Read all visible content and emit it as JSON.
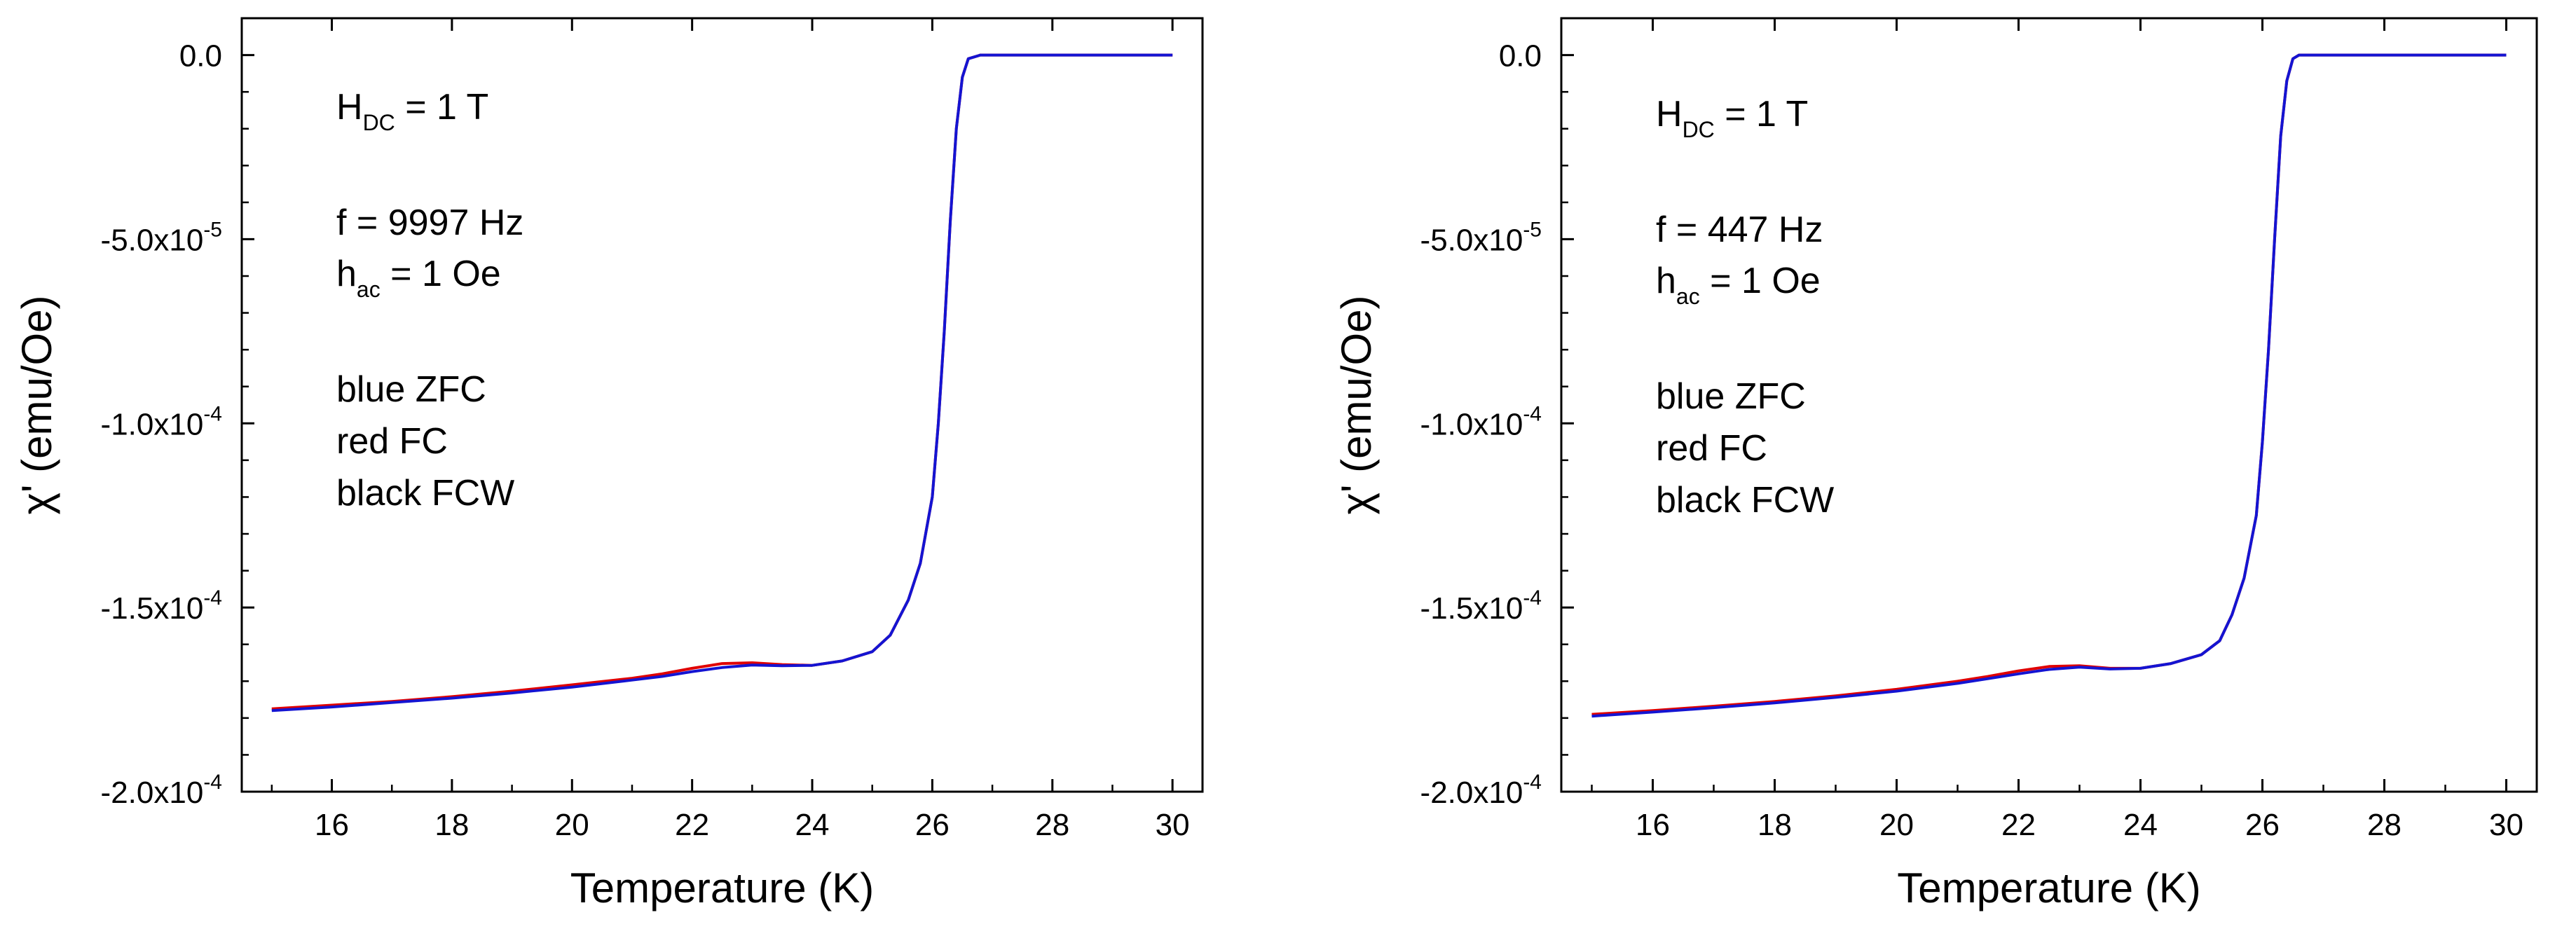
{
  "chart_data": [
    {
      "type": "line",
      "xlabel": "Temperature (K)",
      "ylabel": "χ' (emu/Oe)",
      "xlim": [
        14.5,
        30.5
      ],
      "ylim": [
        -0.0002,
        1e-05
      ],
      "xticks": [
        16,
        18,
        20,
        22,
        24,
        26,
        28,
        30
      ],
      "xtick_labels": [
        "16",
        "18",
        "20",
        "22",
        "24",
        "26",
        "28",
        "30"
      ],
      "yticks": [
        -0.0002,
        -0.00015,
        -0.0001,
        -5e-05,
        0
      ],
      "ytick_labels": [
        {
          "mant": "-2.0x10",
          "exp": "-4"
        },
        {
          "mant": "-1.5x10",
          "exp": "-4"
        },
        {
          "mant": "-1.0x10",
          "exp": "-4"
        },
        {
          "mant": "-5.0x10",
          "exp": "-5"
        },
        {
          "mant": "0.0",
          "exp": ""
        }
      ],
      "annotations": {
        "hdc_main": "H",
        "hdc_sub": "DC",
        "hdc_rest": " = 1 T",
        "freq": "f = 9997 Hz",
        "hac_main": "h",
        "hac_sub": "ac",
        "hac_rest": " = 1 Oe",
        "legend_blue": "blue ZFC",
        "legend_red": "red FC",
        "legend_black": "black FCW"
      },
      "series": [
        {
          "name": "FC",
          "color": "#e00000",
          "x": [
            15.0,
            16,
            17,
            18,
            19,
            20,
            21,
            21.5,
            22,
            22.5,
            23,
            23.5,
            24,
            24.5,
            25,
            25.3,
            25.6,
            25.8,
            26.0,
            26.1,
            26.2,
            26.3,
            26.4,
            26.5,
            26.6,
            26.8,
            27,
            28,
            29,
            30
          ],
          "y": [
            -0.0001775,
            -0.0001765,
            -0.0001755,
            -0.0001742,
            -0.0001727,
            -0.000171,
            -0.0001692,
            -0.000168,
            -0.0001665,
            -0.0001652,
            -0.000165,
            -0.0001655,
            -0.0001657,
            -0.0001645,
            -0.000162,
            -0.0001575,
            -0.000148,
            -0.000138,
            -0.00012,
            -0.0001,
            -7.5e-05,
            -4.5e-05,
            -2e-05,
            -6e-06,
            -1e-06,
            0.0,
            0.0,
            0.0,
            0.0,
            0.0
          ]
        },
        {
          "name": "ZFC",
          "color": "#1414d2",
          "x": [
            15.0,
            16,
            17,
            18,
            19,
            20,
            21,
            21.5,
            22,
            22.5,
            23,
            23.5,
            24,
            24.5,
            25,
            25.3,
            25.6,
            25.8,
            26.0,
            26.1,
            26.2,
            26.3,
            26.4,
            26.5,
            26.6,
            26.8,
            27,
            28,
            29,
            30
          ],
          "y": [
            -0.000178,
            -0.000177,
            -0.0001758,
            -0.0001746,
            -0.0001732,
            -0.0001716,
            -0.0001697,
            -0.0001687,
            -0.0001674,
            -0.0001663,
            -0.0001656,
            -0.0001658,
            -0.0001657,
            -0.0001645,
            -0.000162,
            -0.0001575,
            -0.000148,
            -0.000138,
            -0.00012,
            -0.0001,
            -7.5e-05,
            -4.5e-05,
            -2e-05,
            -6e-06,
            -1e-06,
            0.0,
            0.0,
            0.0,
            0.0,
            0.0
          ]
        }
      ]
    },
    {
      "type": "line",
      "xlabel": "Temperature (K)",
      "ylabel": "χ' (emu/Oe)",
      "xlim": [
        14.5,
        30.5
      ],
      "ylim": [
        -0.0002,
        1e-05
      ],
      "xticks": [
        16,
        18,
        20,
        22,
        24,
        26,
        28,
        30
      ],
      "xtick_labels": [
        "16",
        "18",
        "20",
        "22",
        "24",
        "26",
        "28",
        "30"
      ],
      "yticks": [
        -0.0002,
        -0.00015,
        -0.0001,
        -5e-05,
        0
      ],
      "ytick_labels": [
        {
          "mant": "-2.0x10",
          "exp": "-4"
        },
        {
          "mant": "-1.5x10",
          "exp": "-4"
        },
        {
          "mant": "-1.0x10",
          "exp": "-4"
        },
        {
          "mant": "-5.0x10",
          "exp": "-5"
        },
        {
          "mant": "0.0",
          "exp": ""
        }
      ],
      "annotations": {
        "hdc_main": "H",
        "hdc_sub": "DC",
        "hdc_rest": " = 1 T",
        "freq": "f = 447 Hz",
        "hac_main": "h",
        "hac_sub": "ac",
        "hac_rest": " = 1 Oe",
        "legend_blue": "blue ZFC",
        "legend_red": "red FC",
        "legend_black": "black FCW"
      },
      "series": [
        {
          "name": "FC",
          "color": "#e00000",
          "x": [
            15.0,
            16,
            17,
            18,
            19,
            20,
            21,
            21.5,
            22,
            22.5,
            23,
            23.5,
            24,
            24.5,
            25,
            25.3,
            25.5,
            25.7,
            25.9,
            26.0,
            26.1,
            26.2,
            26.3,
            26.4,
            26.5,
            26.6,
            27,
            28,
            29,
            30
          ],
          "y": [
            -0.000179,
            -0.000178,
            -0.0001768,
            -0.0001755,
            -0.000174,
            -0.0001722,
            -0.00017,
            -0.0001687,
            -0.0001672,
            -0.000166,
            -0.0001658,
            -0.0001665,
            -0.0001665,
            -0.0001652,
            -0.0001628,
            -0.000159,
            -0.000152,
            -0.000142,
            -0.000125,
            -0.000105,
            -8e-05,
            -5e-05,
            -2.2e-05,
            -7e-06,
            -1e-06,
            0.0,
            0.0,
            0.0,
            0.0,
            0.0
          ]
        },
        {
          "name": "ZFC",
          "color": "#1414d2",
          "x": [
            15.0,
            16,
            17,
            18,
            19,
            20,
            21,
            21.5,
            22,
            22.5,
            23,
            23.5,
            24,
            24.5,
            25,
            25.3,
            25.5,
            25.7,
            25.9,
            26.0,
            26.1,
            26.2,
            26.3,
            26.4,
            26.5,
            26.6,
            27,
            28,
            29,
            30
          ],
          "y": [
            -0.0001795,
            -0.0001784,
            -0.0001772,
            -0.0001759,
            -0.0001744,
            -0.0001727,
            -0.0001706,
            -0.0001693,
            -0.000168,
            -0.0001668,
            -0.0001662,
            -0.0001667,
            -0.0001665,
            -0.0001652,
            -0.0001628,
            -0.000159,
            -0.000152,
            -0.000142,
            -0.000125,
            -0.000105,
            -8e-05,
            -5e-05,
            -2.2e-05,
            -7e-06,
            -1e-06,
            0.0,
            0.0,
            0.0,
            0.0,
            0.0
          ]
        }
      ]
    }
  ]
}
